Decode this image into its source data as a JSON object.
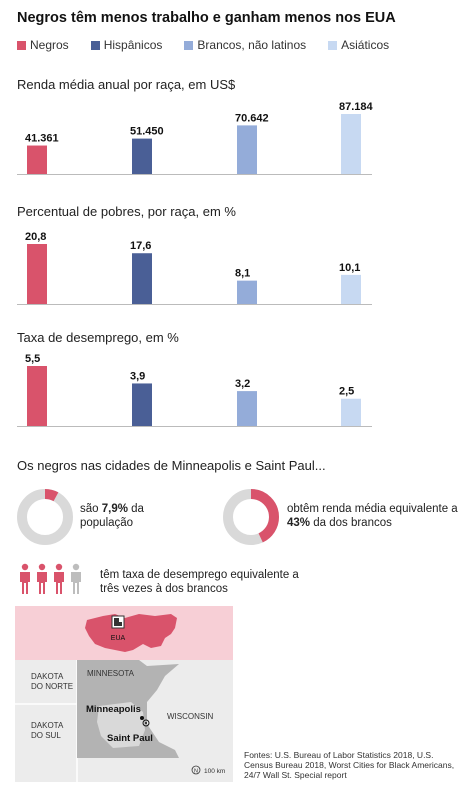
{
  "title": "Negros têm menos trabalho e ganham menos nos EUA",
  "legend": [
    {
      "label": "Negros",
      "color": "#d9536b"
    },
    {
      "label": "Hispânicos",
      "color": "#4a5f96"
    },
    {
      "label": "Brancos, não latinos",
      "color": "#94acd9"
    },
    {
      "label": "Asiáticos",
      "color": "#c7d9f2"
    }
  ],
  "chart_data": [
    {
      "type": "bar",
      "title": "Renda média anual por raça, em US$",
      "categories": [
        "Negros",
        "Hispânicos",
        "Brancos, não latinos",
        "Asiáticos"
      ],
      "values": [
        41361,
        51450,
        70642,
        87184
      ],
      "value_labels": [
        "41.361",
        "51.450",
        "70.642",
        "87.184"
      ],
      "ylim": [
        0,
        87184
      ]
    },
    {
      "type": "bar",
      "title": "Percentual de pobres, por raça, em %",
      "categories": [
        "Negros",
        "Hispânicos",
        "Brancos, não latinos",
        "Asiáticos"
      ],
      "values": [
        20.8,
        17.6,
        8.1,
        10.1
      ],
      "value_labels": [
        "20,8",
        "17,6",
        "8,1",
        "10,1"
      ],
      "ylim": [
        0,
        20.8
      ]
    },
    {
      "type": "bar",
      "title": "Taxa de desemprego, em %",
      "categories": [
        "Negros",
        "Hispânicos",
        "Brancos, não latinos",
        "Asiáticos"
      ],
      "values": [
        5.5,
        3.9,
        3.2,
        2.5
      ],
      "value_labels": [
        "5,5",
        "3,9",
        "3,2",
        "2,5"
      ],
      "ylim": [
        0,
        5.5
      ]
    }
  ],
  "cities_section": {
    "title": "Os negros nas cidades de Minneapolis e Saint Paul...",
    "donut1": {
      "value": 7.9,
      "pre": "são ",
      "bold": "7,9%",
      "post1": " da",
      "post2": "população"
    },
    "donut2": {
      "value": 43,
      "line1": "obtêm renda média equivalente a",
      "bold": "43%",
      "post": " da dos brancos"
    },
    "people": {
      "highlighted": 3,
      "total": 4,
      "line1": "têm taxa de desemprego equivalente a",
      "line2": "três vezes à dos brancos"
    }
  },
  "map": {
    "inset_label": "EUA",
    "labels": {
      "dakota_norte_1": "DAKOTA",
      "dakota_norte_2": "DO NORTE",
      "dakota_sul_1": "DAKOTA",
      "dakota_sul_2": "DO SUL",
      "minnesota": "MINNESOTA",
      "wisconsin": "WISCONSIN",
      "minneapolis": "Minneapolis",
      "saint_paul": "Saint Paul",
      "scale": "100 km"
    }
  },
  "sources": "Fontes: U.S. Bureau of Labor Statistics 2018, U.S. Census Bureau 2018, Worst Cities for Black Americans, 24/7 Wall St. Special report",
  "colors": {
    "black": "#d9536b",
    "hispanic": "#4a5f96",
    "white": "#94acd9",
    "asian": "#c7d9f2",
    "donut_bg": "#d9d9d9"
  }
}
